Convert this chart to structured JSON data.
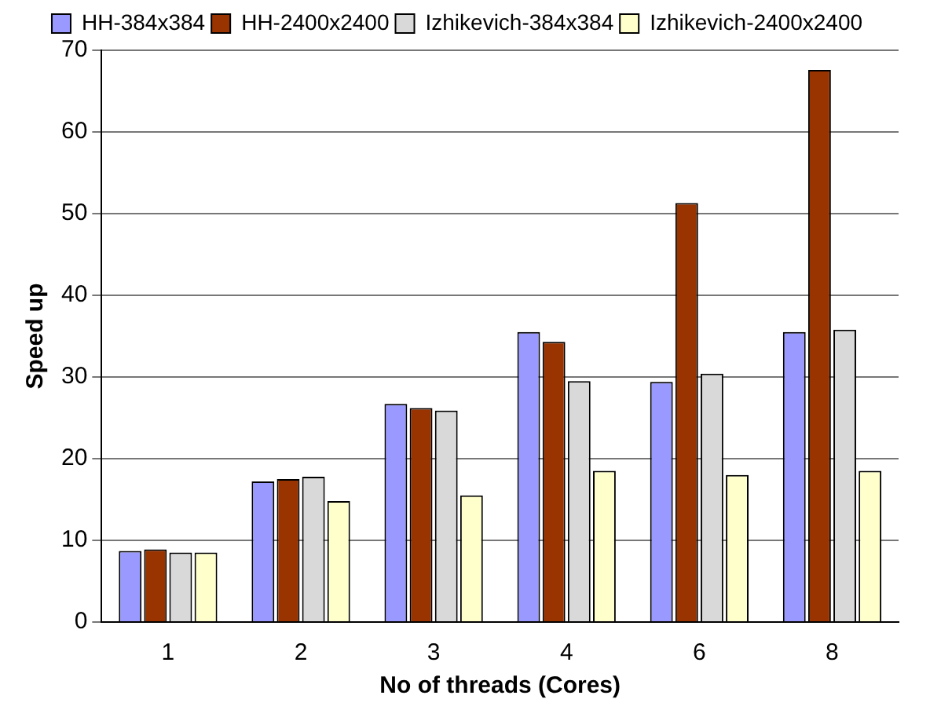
{
  "chart_data": {
    "type": "bar",
    "xlabel": "No of threads (Cores)",
    "ylabel": "Speed up",
    "categories": [
      "1",
      "2",
      "3",
      "4",
      "6",
      "8"
    ],
    "series": [
      {
        "name": "HH-384x384",
        "color": "#9999ff",
        "values": [
          8.7,
          17.2,
          26.7,
          35.5,
          29.4,
          35.5
        ]
      },
      {
        "name": "HH-2400x2400",
        "color": "#993300",
        "values": [
          8.9,
          17.5,
          26.2,
          34.3,
          51.3,
          67.6
        ]
      },
      {
        "name": "Izhikevich-384x384",
        "color": "#d9d9d9",
        "values": [
          8.5,
          17.8,
          25.9,
          29.5,
          30.4,
          35.8
        ]
      },
      {
        "name": "Izhikevich-2400x2400",
        "color": "#ffffcc",
        "values": [
          8.5,
          14.8,
          15.5,
          18.5,
          18.0,
          18.5
        ]
      }
    ],
    "ylim": [
      0,
      70
    ],
    "yticks": [
      0,
      10,
      20,
      30,
      40,
      50,
      60,
      70
    ],
    "grid": "y",
    "legend": "top"
  }
}
